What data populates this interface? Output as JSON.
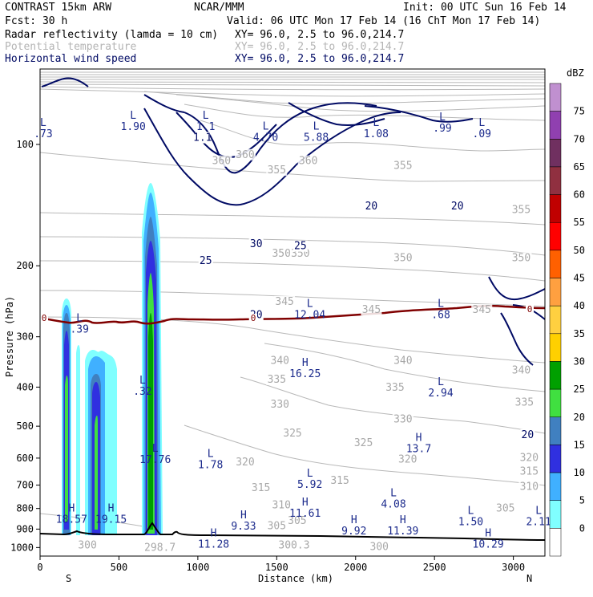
{
  "header": {
    "line1_left": "CONTRAST 15km ARW",
    "line1_mid": "NCAR/MMM",
    "line1_right": "Init: 00 UTC Sun 16 Feb 14",
    "line2_left": "Fcst:    30 h",
    "line2_right": "Valid: 06 UTC Mon 17 Feb 14 (16 ChT Mon 17 Feb 14)",
    "fields": [
      {
        "name": "Radar reflectivity (lamda = 10 cm)",
        "xy": "XY=  96.0,  2.5 to  96.0,214.7",
        "color": "#000000"
      },
      {
        "name": "Potential temperature",
        "xy": "XY=  96.0,  2.5 to  96.0,214.7",
        "color": "#b4b4b4"
      },
      {
        "name": "Horizontal wind speed",
        "xy": "XY=  96.0,  2.5 to  96.0,214.7",
        "color": "#000a64"
      }
    ]
  },
  "chart_data": {
    "type": "cross-section",
    "xlabel": "Distance (km)",
    "ylabel": "Pressure (hPa)",
    "xlim": [
      0,
      3200
    ],
    "ylim": [
      1050,
      65
    ],
    "y_scale": "log",
    "x_ticks": [
      0,
      500,
      1000,
      1500,
      2000,
      2500,
      3000
    ],
    "x_tick_labels": [
      "0",
      "500",
      "1000",
      "1500",
      "2000",
      "2500",
      "3000"
    ],
    "y_ticks": [
      100,
      200,
      300,
      400,
      500,
      600,
      700,
      800,
      900,
      1000
    ],
    "y_tick_labels": [
      "100",
      "200",
      "300",
      "400",
      "500",
      "600",
      "700",
      "800",
      "900",
      "1000"
    ],
    "end_labels": {
      "left": "S",
      "right": "N"
    },
    "colorbar": {
      "title": "dBZ",
      "levels": [
        75,
        70,
        65,
        60,
        55,
        50,
        45,
        40,
        35,
        30,
        25,
        20,
        15,
        10,
        5,
        0
      ],
      "colors": [
        "#c090d0",
        "#9040b0",
        "#703060",
        "#903040",
        "#c00000",
        "#ff0000",
        "#ff6000",
        "#ffa040",
        "#ffd040",
        "#ffd000",
        "#00a000",
        "#40e040",
        "#4080c0",
        "#3030e0",
        "#40b0ff",
        "#80ffff",
        "#ffffff"
      ]
    },
    "potential_temperature_labels": [
      {
        "x": 1300,
        "p": 108,
        "text": "360"
      },
      {
        "x": 1150,
        "p": 112,
        "text": "360"
      },
      {
        "x": 1500,
        "p": 118,
        "text": "355"
      },
      {
        "x": 1700,
        "p": 112,
        "text": "360"
      },
      {
        "x": 2300,
        "p": 115,
        "text": "355"
      },
      {
        "x": 3050,
        "p": 148,
        "text": "355"
      },
      {
        "x": 1530,
        "p": 190,
        "text": "350"
      },
      {
        "x": 1650,
        "p": 190,
        "text": "350"
      },
      {
        "x": 2300,
        "p": 195,
        "text": "350"
      },
      {
        "x": 3050,
        "p": 195,
        "text": "350"
      },
      {
        "x": 1550,
        "p": 250,
        "text": "345"
      },
      {
        "x": 2100,
        "p": 262,
        "text": "345"
      },
      {
        "x": 2800,
        "p": 262,
        "text": "345"
      },
      {
        "x": 1520,
        "p": 350,
        "text": "340"
      },
      {
        "x": 2300,
        "p": 350,
        "text": "340"
      },
      {
        "x": 3050,
        "p": 370,
        "text": "340"
      },
      {
        "x": 1500,
        "p": 390,
        "text": "335"
      },
      {
        "x": 2250,
        "p": 408,
        "text": "335"
      },
      {
        "x": 3070,
        "p": 445,
        "text": "335"
      },
      {
        "x": 1520,
        "p": 450,
        "text": "330"
      },
      {
        "x": 2300,
        "p": 490,
        "text": "330"
      },
      {
        "x": 1600,
        "p": 530,
        "text": "325"
      },
      {
        "x": 2050,
        "p": 560,
        "text": "325"
      },
      {
        "x": 1300,
        "p": 625,
        "text": "320"
      },
      {
        "x": 2330,
        "p": 615,
        "text": "320"
      },
      {
        "x": 3100,
        "p": 610,
        "text": "320"
      },
      {
        "x": 1900,
        "p": 695,
        "text": "315"
      },
      {
        "x": 1400,
        "p": 725,
        "text": "315"
      },
      {
        "x": 3100,
        "p": 660,
        "text": "315"
      },
      {
        "x": 3100,
        "p": 720,
        "text": "310"
      },
      {
        "x": 1530,
        "p": 800,
        "text": "310"
      },
      {
        "x": 2950,
        "p": 815,
        "text": "305"
      },
      {
        "x": 1630,
        "p": 875,
        "text": "305"
      },
      {
        "x": 1500,
        "p": 900,
        "text": "305"
      },
      {
        "x": 300,
        "p": 1005,
        "text": "300"
      },
      {
        "x": 1610,
        "p": 1005,
        "text": "300.3"
      },
      {
        "x": 2150,
        "p": 1015,
        "text": "300"
      },
      {
        "x": 760,
        "p": 1020,
        "text": "298.7"
      }
    ],
    "wind_speed_labels": [
      {
        "x": 1030,
        "p": 98,
        "text": "1.1"
      },
      {
        "x": 230,
        "p": 140,
        "text": "-"
      },
      {
        "x": 1370,
        "p": 180,
        "text": "30"
      },
      {
        "x": 1650,
        "p": 182,
        "text": "25"
      },
      {
        "x": 1050,
        "p": 198,
        "text": "25"
      },
      {
        "x": 1370,
        "p": 270,
        "text": "20"
      },
      {
        "x": 2100,
        "p": 145,
        "text": "20"
      },
      {
        "x": 2645,
        "p": 145,
        "text": "20"
      },
      {
        "x": 3090,
        "p": 535,
        "text": "20"
      }
    ],
    "extrema": [
      {
        "kind": "L",
        "value": ".73",
        "x": 20,
        "p": 96
      },
      {
        "kind": "L",
        "value": "1.90",
        "x": 590,
        "p": 92
      },
      {
        "kind": "L",
        "value": "1.1",
        "x": 1050,
        "p": 92
      },
      {
        "kind": "L",
        "value": "4.70",
        "x": 1430,
        "p": 98
      },
      {
        "kind": "L",
        "value": "5.88",
        "x": 1750,
        "p": 98
      },
      {
        "kind": "L",
        "value": "1.08",
        "x": 2130,
        "p": 96
      },
      {
        "kind": "L",
        "value": ".99",
        "x": 2550,
        "p": 93
      },
      {
        "kind": "L",
        "value": ".09",
        "x": 2800,
        "p": 96
      },
      {
        "kind": "L",
        "value": ".39",
        "x": 250,
        "p": 293
      },
      {
        "kind": "L",
        "value": "12.04",
        "x": 1710,
        "p": 270
      },
      {
        "kind": "L",
        "value": ".68",
        "x": 2540,
        "p": 270
      },
      {
        "kind": "H",
        "value": "16.25",
        "x": 1680,
        "p": 378
      },
      {
        "kind": "L",
        "value": ".32",
        "x": 650,
        "p": 418
      },
      {
        "kind": "L",
        "value": "2.94",
        "x": 2540,
        "p": 422
      },
      {
        "kind": "H",
        "value": "13.7",
        "x": 2400,
        "p": 580
      },
      {
        "kind": "L",
        "value": "17.76",
        "x": 730,
        "p": 617
      },
      {
        "kind": "L",
        "value": "1.78",
        "x": 1080,
        "p": 635
      },
      {
        "kind": "L",
        "value": "5.92",
        "x": 1710,
        "p": 712
      },
      {
        "kind": "L",
        "value": "4.08",
        "x": 2240,
        "p": 795
      },
      {
        "kind": "H",
        "value": "11.61",
        "x": 1680,
        "p": 838
      },
      {
        "kind": "H",
        "value": "18.57",
        "x": 200,
        "p": 868
      },
      {
        "kind": "H",
        "value": "19.15",
        "x": 450,
        "p": 868
      },
      {
        "kind": "L",
        "value": "1.50",
        "x": 2730,
        "p": 880
      },
      {
        "kind": "L",
        "value": "2.11",
        "x": 3160,
        "p": 880
      },
      {
        "kind": "H",
        "value": "9.33",
        "x": 1290,
        "p": 903
      },
      {
        "kind": "H",
        "value": "9.92",
        "x": 1990,
        "p": 928
      },
      {
        "kind": "H",
        "value": "11.39",
        "x": 2300,
        "p": 928
      },
      {
        "kind": "H",
        "value": "11.28",
        "x": 1100,
        "p": 1000
      },
      {
        "kind": "H",
        "value": "10.29",
        "x": 2840,
        "p": 1000
      }
    ],
    "zero_isotherm_label": "0"
  }
}
